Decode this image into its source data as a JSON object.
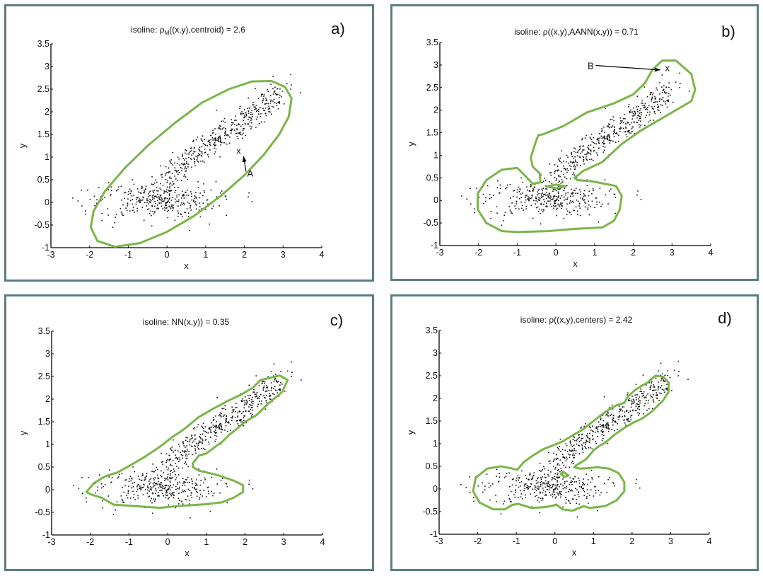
{
  "colors": {
    "contour": "#7ab648",
    "frame": "#5a7f80",
    "points": "#111111"
  },
  "chart_data": [
    {
      "id": "a",
      "type": "scatter",
      "tag": "a)",
      "title": "isoline: ρM((x,y),centroid) = 2.6",
      "title_main": "isoline: ρ",
      "title_sub": "M",
      "title_rest": "((x,y),centroid) = 2.6",
      "xlabel": "x",
      "ylabel": "y",
      "xlim": [
        -3,
        4
      ],
      "ylim": [
        -1,
        3.5
      ],
      "xticks": [
        "-3",
        "-2",
        "-1",
        "0",
        "1",
        "2",
        "3",
        "4"
      ],
      "yticks": [
        "-1",
        "-0.5",
        "0",
        "0.5",
        "1",
        "1.5",
        "2",
        "2.5",
        "3",
        "3.5"
      ],
      "contours": [
        [
          [
            -1.35,
            -0.98
          ],
          [
            -1.8,
            -0.85
          ],
          [
            -1.97,
            -0.55
          ],
          [
            -1.9,
            -0.2
          ],
          [
            -1.6,
            0.25
          ],
          [
            -1.1,
            0.75
          ],
          [
            -0.5,
            1.25
          ],
          [
            0.2,
            1.75
          ],
          [
            0.9,
            2.2
          ],
          [
            1.6,
            2.5
          ],
          [
            2.2,
            2.67
          ],
          [
            2.7,
            2.68
          ],
          [
            3.05,
            2.55
          ],
          [
            3.22,
            2.3
          ],
          [
            3.15,
            1.9
          ],
          [
            2.9,
            1.5
          ],
          [
            2.5,
            1.05
          ],
          [
            2.0,
            0.6
          ],
          [
            1.4,
            0.15
          ],
          [
            0.7,
            -0.3
          ],
          [
            0.0,
            -0.65
          ],
          [
            -0.7,
            -0.9
          ],
          [
            -1.35,
            -0.98
          ]
        ]
      ],
      "annotations": [
        {
          "label": "A",
          "at": [
            2.15,
            0.65
          ],
          "marker": "x",
          "marker_at": [
            1.85,
            1.13
          ],
          "arrow_to": [
            1.98,
            1.02
          ]
        }
      ]
    },
    {
      "id": "b",
      "type": "scatter",
      "tag": "b)",
      "title": "isoline: ρ((x,y),AANN(x,y)) = 0.71",
      "title_main": "isoline: ρ((x,y),AANN(x,y)) = 0.71",
      "xlabel": "x",
      "ylabel": "y",
      "xlim": [
        -3,
        4
      ],
      "ylim": [
        -1,
        3.5
      ],
      "xticks": [
        "-3",
        "-2",
        "-1",
        "0",
        "1",
        "2",
        "3",
        "4"
      ],
      "yticks": [
        "-1",
        "-0.5",
        "0",
        "0.5",
        "1",
        "1.5",
        "2",
        "2.5",
        "3",
        "3.5"
      ],
      "contours": [
        [
          [
            -1.4,
            -0.68
          ],
          [
            -1.8,
            -0.5
          ],
          [
            -2.02,
            -0.2
          ],
          [
            -2.02,
            0.15
          ],
          [
            -1.8,
            0.45
          ],
          [
            -1.4,
            0.68
          ],
          [
            -1.0,
            0.72
          ],
          [
            -0.8,
            0.55
          ],
          [
            -0.6,
            0.37
          ],
          [
            -0.4,
            0.4
          ],
          [
            -0.42,
            0.6
          ],
          [
            -0.6,
            0.75
          ],
          [
            -0.65,
            0.95
          ],
          [
            -0.52,
            1.3
          ],
          [
            -0.45,
            1.45
          ],
          [
            -0.35,
            1.46
          ],
          [
            0.2,
            1.65
          ],
          [
            0.8,
            1.95
          ],
          [
            1.5,
            2.15
          ],
          [
            2.0,
            2.35
          ],
          [
            2.3,
            2.6
          ],
          [
            2.5,
            2.9
          ],
          [
            2.75,
            3.1
          ],
          [
            3.1,
            3.1
          ],
          [
            3.5,
            2.8
          ],
          [
            3.6,
            2.45
          ],
          [
            3.5,
            2.2
          ],
          [
            3.2,
            2.05
          ],
          [
            2.7,
            1.8
          ],
          [
            2.2,
            1.55
          ],
          [
            1.7,
            1.25
          ],
          [
            1.2,
            0.85
          ],
          [
            0.7,
            0.65
          ],
          [
            0.48,
            0.5
          ],
          [
            0.55,
            0.45
          ],
          [
            0.95,
            0.42
          ],
          [
            1.55,
            0.32
          ],
          [
            1.7,
            0.1
          ],
          [
            1.65,
            -0.2
          ],
          [
            1.5,
            -0.45
          ],
          [
            1.2,
            -0.6
          ],
          [
            0.5,
            -0.63
          ],
          [
            -0.2,
            -0.68
          ],
          [
            -1.0,
            -0.7
          ],
          [
            -1.4,
            -0.68
          ]
        ],
        [
          [
            -0.25,
            0.31
          ],
          [
            0.0,
            0.35
          ],
          [
            0.25,
            0.31
          ],
          [
            0.0,
            0.27
          ],
          [
            -0.25,
            0.31
          ]
        ]
      ],
      "annotations": [
        {
          "label": "B",
          "at": [
            0.9,
            2.99
          ],
          "marker": "x",
          "marker_at": [
            2.88,
            2.93
          ],
          "arrow_to": [
            2.7,
            2.89
          ]
        }
      ]
    },
    {
      "id": "c",
      "type": "scatter",
      "tag": "c)",
      "title": "isoline: NN(x,y)) = 0.35",
      "title_main": "isoline: NN(x,y)) = 0.35",
      "xlabel": "x",
      "ylabel": "y",
      "xlim": [
        -3,
        4
      ],
      "ylim": [
        -1,
        3.5
      ],
      "xticks": [
        "-3",
        "-2",
        "-1",
        "0",
        "1",
        "2",
        "3",
        "4"
      ],
      "yticks": [
        "-1",
        "-0.5",
        "0",
        "0.5",
        "1",
        "1.5",
        "2",
        "2.5",
        "3",
        "3.5"
      ],
      "contours": [
        [
          [
            -2.1,
            -0.05
          ],
          [
            -1.9,
            0.15
          ],
          [
            -1.6,
            0.3
          ],
          [
            -1.3,
            0.38
          ],
          [
            -1.0,
            0.52
          ],
          [
            -0.6,
            0.72
          ],
          [
            -0.2,
            0.95
          ],
          [
            0.1,
            1.15
          ],
          [
            0.4,
            1.32
          ],
          [
            0.8,
            1.6
          ],
          [
            1.2,
            1.8
          ],
          [
            1.6,
            1.98
          ],
          [
            1.9,
            2.1
          ],
          [
            2.2,
            2.25
          ],
          [
            2.4,
            2.42
          ],
          [
            2.9,
            2.52
          ],
          [
            3.1,
            2.42
          ],
          [
            2.95,
            2.15
          ],
          [
            2.6,
            1.9
          ],
          [
            2.3,
            1.65
          ],
          [
            2.0,
            1.5
          ],
          [
            1.8,
            1.35
          ],
          [
            1.6,
            1.22
          ],
          [
            1.4,
            1.05
          ],
          [
            1.2,
            0.93
          ],
          [
            1.0,
            0.8
          ],
          [
            0.8,
            0.75
          ],
          [
            0.65,
            0.58
          ],
          [
            0.65,
            0.5
          ],
          [
            0.8,
            0.42
          ],
          [
            1.3,
            0.32
          ],
          [
            1.7,
            0.2
          ],
          [
            1.95,
            0.1
          ],
          [
            1.95,
            -0.05
          ],
          [
            1.7,
            -0.18
          ],
          [
            1.4,
            -0.28
          ],
          [
            1.0,
            -0.32
          ],
          [
            0.3,
            -0.36
          ],
          [
            -0.2,
            -0.4
          ],
          [
            -0.9,
            -0.36
          ],
          [
            -1.4,
            -0.33
          ],
          [
            -1.7,
            -0.18
          ],
          [
            -2.0,
            -0.1
          ],
          [
            -2.1,
            -0.05
          ]
        ]
      ],
      "annotations": []
    },
    {
      "id": "d",
      "type": "scatter",
      "tag": "d)",
      "title": "isoline: ρ((x,y),centers) = 2.42",
      "title_main": "isoline: ρ((x,y),centers) = 2.42",
      "xlabel": "x",
      "ylabel": "y",
      "xlim": [
        -3,
        4
      ],
      "ylim": [
        -1,
        3.5
      ],
      "xticks": [
        "-3",
        "-2",
        "-1",
        "0",
        "1",
        "2",
        "3",
        "4"
      ],
      "yticks": [
        "-1",
        "-0.5",
        "0",
        "0.5",
        "1",
        "1.5",
        "2",
        "2.5",
        "3",
        "3.5"
      ],
      "contours": [
        [
          [
            -1.6,
            -0.45
          ],
          [
            -1.95,
            -0.3
          ],
          [
            -2.12,
            -0.05
          ],
          [
            -2.05,
            0.25
          ],
          [
            -1.75,
            0.45
          ],
          [
            -1.4,
            0.5
          ],
          [
            -1.1,
            0.45
          ],
          [
            -0.98,
            0.42
          ],
          [
            -0.8,
            0.6
          ],
          [
            -0.55,
            0.75
          ],
          [
            -0.3,
            0.88
          ],
          [
            0.0,
            0.98
          ],
          [
            0.2,
            1.05
          ],
          [
            0.45,
            1.18
          ],
          [
            0.7,
            1.3
          ],
          [
            1.0,
            1.5
          ],
          [
            1.3,
            1.7
          ],
          [
            1.6,
            1.85
          ],
          [
            1.8,
            1.9
          ],
          [
            1.9,
            2.05
          ],
          [
            2.1,
            2.2
          ],
          [
            2.4,
            2.35
          ],
          [
            2.6,
            2.5
          ],
          [
            2.8,
            2.48
          ],
          [
            2.95,
            2.35
          ],
          [
            2.95,
            2.15
          ],
          [
            2.8,
            1.95
          ],
          [
            2.5,
            1.7
          ],
          [
            2.25,
            1.55
          ],
          [
            2.0,
            1.45
          ],
          [
            1.8,
            1.35
          ],
          [
            1.55,
            1.2
          ],
          [
            1.3,
            1.02
          ],
          [
            1.15,
            0.95
          ],
          [
            1.0,
            0.85
          ],
          [
            0.8,
            0.65
          ],
          [
            0.55,
            0.52
          ],
          [
            0.5,
            0.48
          ],
          [
            0.65,
            0.45
          ],
          [
            0.85,
            0.46
          ],
          [
            1.1,
            0.48
          ],
          [
            1.4,
            0.45
          ],
          [
            1.65,
            0.35
          ],
          [
            1.8,
            0.15
          ],
          [
            1.8,
            -0.05
          ],
          [
            1.6,
            -0.25
          ],
          [
            1.3,
            -0.38
          ],
          [
            0.9,
            -0.42
          ],
          [
            0.75,
            -0.38
          ],
          [
            0.45,
            -0.48
          ],
          [
            0.2,
            -0.45
          ],
          [
            0.05,
            -0.35
          ],
          [
            -0.25,
            -0.4
          ],
          [
            -0.6,
            -0.42
          ],
          [
            -0.95,
            -0.33
          ],
          [
            -1.1,
            -0.35
          ],
          [
            -1.3,
            -0.45
          ],
          [
            -1.6,
            -0.45
          ]
        ],
        [
          [
            0.15,
            0.33
          ],
          [
            0.22,
            0.38
          ],
          [
            0.35,
            0.3
          ],
          [
            0.25,
            0.27
          ],
          [
            0.15,
            0.33
          ]
        ]
      ],
      "annotations": []
    }
  ],
  "scatter_points_description": "Same ~800-point 2D dataset plotted in all four panels: an elongated cluster along y≈0.65x+0.4 from (0,0.7) to (3,2.5) plus a diffuse blob centered near (-0.2,0.05)",
  "scatter_outliers": [
    [
      -2.3,
      0.03
    ],
    [
      -2.2,
      -0.08
    ],
    [
      -2.1,
      -0.27
    ],
    [
      -2.05,
      0.27
    ],
    [
      -1.68,
      -0.4
    ],
    [
      -1.4,
      -0.55
    ],
    [
      -1.35,
      -0.45
    ],
    [
      0.58,
      -0.62
    ],
    [
      1.1,
      -0.48
    ],
    [
      2.1,
      0.12
    ],
    [
      2.2,
      0.02
    ],
    [
      3.1,
      2.62
    ],
    [
      3.2,
      2.82
    ],
    [
      3.45,
      2.42
    ],
    [
      3.2,
      2.5
    ],
    [
      2.7,
      1.95
    ]
  ]
}
